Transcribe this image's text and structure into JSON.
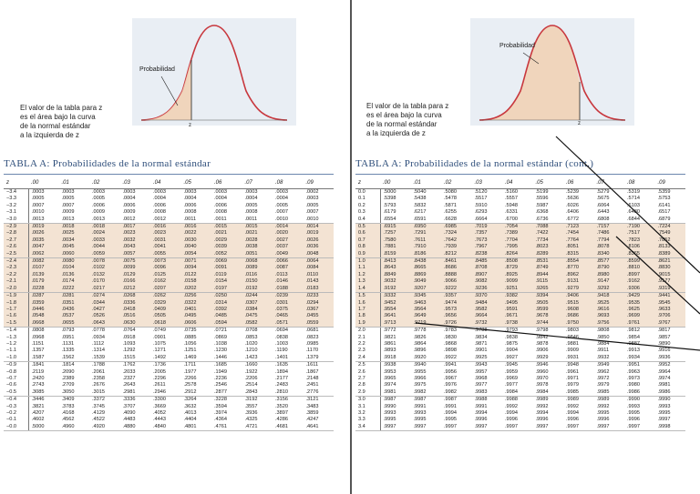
{
  "left": {
    "caption": [
      "El valor de la tabla para z",
      "es el área bajo la curva",
      "de la normal estándar",
      "a la izquierda de z"
    ],
    "prob_label": "Probabilidad",
    "z_label": "z",
    "title": "TABLA A:  Probabilidades de la normal estándar",
    "headers": [
      "z",
      ".00",
      ".01",
      ".02",
      ".03",
      ".04",
      ".05",
      ".06",
      ".07",
      ".08",
      ".09"
    ],
    "rows": [
      [
        "−3.4",
        ".0003",
        ".0003",
        ".0003",
        ".0003",
        ".0003",
        ".0003",
        ".0003",
        ".0003",
        ".0003",
        ".0002"
      ],
      [
        "−3.3",
        ".0005",
        ".0005",
        ".0005",
        ".0004",
        ".0004",
        ".0004",
        ".0004",
        ".0004",
        ".0004",
        ".0003"
      ],
      [
        "−3.2",
        ".0007",
        ".0007",
        ".0006",
        ".0006",
        ".0006",
        ".0006",
        ".0006",
        ".0005",
        ".0005",
        ".0005"
      ],
      [
        "−3.1",
        ".0010",
        ".0009",
        ".0009",
        ".0009",
        ".0008",
        ".0008",
        ".0008",
        ".0008",
        ".0007",
        ".0007"
      ],
      [
        "−3.0",
        ".0013",
        ".0013",
        ".0013",
        ".0012",
        ".0012",
        ".0011",
        ".0011",
        ".0011",
        ".0010",
        ".0010"
      ],
      [
        "−2.9",
        ".0019",
        ".0018",
        ".0018",
        ".0017",
        ".0016",
        ".0016",
        ".0015",
        ".0015",
        ".0014",
        ".0014"
      ],
      [
        "−2.8",
        ".0026",
        ".0025",
        ".0024",
        ".0023",
        ".0023",
        ".0022",
        ".0021",
        ".0021",
        ".0020",
        ".0019"
      ],
      [
        "−2.7",
        ".0035",
        ".0034",
        ".0033",
        ".0032",
        ".0031",
        ".0030",
        ".0029",
        ".0028",
        ".0027",
        ".0026"
      ],
      [
        "−2.6",
        ".0047",
        ".0045",
        ".0044",
        ".0043",
        ".0041",
        ".0040",
        ".0039",
        ".0038",
        ".0037",
        ".0036"
      ],
      [
        "−2.5",
        ".0062",
        ".0060",
        ".0059",
        ".0057",
        ".0055",
        ".0054",
        ".0052",
        ".0051",
        ".0049",
        ".0048"
      ],
      [
        "−2.4",
        ".0082",
        ".0080",
        ".0078",
        ".0075",
        ".0073",
        ".0071",
        ".0069",
        ".0068",
        ".0066",
        ".0064"
      ],
      [
        "−2.3",
        ".0107",
        ".0104",
        ".0102",
        ".0099",
        ".0096",
        ".0094",
        ".0091",
        ".0089",
        ".0087",
        ".0084"
      ],
      [
        "−2.2",
        ".0139",
        ".0136",
        ".0132",
        ".0129",
        ".0125",
        ".0122",
        ".0119",
        ".0116",
        ".0113",
        ".0110"
      ],
      [
        "−2.1",
        ".0179",
        ".0174",
        ".0170",
        ".0166",
        ".0162",
        ".0158",
        ".0154",
        ".0150",
        ".0146",
        ".0143"
      ],
      [
        "−2.0",
        ".0228",
        ".0222",
        ".0217",
        ".0212",
        ".0207",
        ".0202",
        ".0197",
        ".0192",
        ".0188",
        ".0183"
      ],
      [
        "−1.9",
        ".0287",
        ".0281",
        ".0274",
        ".0268",
        ".0262",
        ".0256",
        ".0250",
        ".0244",
        ".0239",
        ".0233"
      ],
      [
        "−1.8",
        ".0359",
        ".0351",
        ".0344",
        ".0336",
        ".0329",
        ".0322",
        ".0314",
        ".0307",
        ".0301",
        ".0294"
      ],
      [
        "−1.7",
        ".0446",
        ".0436",
        ".0427",
        ".0418",
        ".0409",
        ".0401",
        ".0392",
        ".0384",
        ".0375",
        ".0367"
      ],
      [
        "−1.6",
        ".0548",
        ".0537",
        ".0526",
        ".0516",
        ".0505",
        ".0495",
        ".0485",
        ".0475",
        ".0465",
        ".0455"
      ],
      [
        "−1.5",
        ".0668",
        ".0655",
        ".0643",
        ".0630",
        ".0618",
        ".0606",
        ".0594",
        ".0582",
        ".0571",
        ".0559"
      ],
      [
        "−1.4",
        ".0808",
        ".0793",
        ".0778",
        ".0764",
        ".0749",
        ".0735",
        ".0721",
        ".0708",
        ".0694",
        ".0681"
      ],
      [
        "−1.3",
        ".0968",
        ".0951",
        ".0934",
        ".0918",
        ".0901",
        ".0885",
        ".0869",
        ".0853",
        ".0838",
        ".0823"
      ],
      [
        "−1.2",
        ".1151",
        ".1131",
        ".1112",
        ".1093",
        ".1075",
        ".1056",
        ".1038",
        ".1020",
        ".1003",
        ".0985"
      ],
      [
        "−1.1",
        ".1357",
        ".1335",
        ".1314",
        ".1292",
        ".1271",
        ".1251",
        ".1230",
        ".1210",
        ".1190",
        ".1170"
      ],
      [
        "−1.0",
        ".1587",
        ".1562",
        ".1539",
        ".1515",
        ".1492",
        ".1469",
        ".1446",
        ".1423",
        ".1401",
        ".1379"
      ],
      [
        "−0.9",
        ".1841",
        ".1814",
        ".1788",
        ".1762",
        ".1736",
        ".1711",
        ".1685",
        ".1660",
        ".1635",
        ".1611"
      ],
      [
        "−0.8",
        ".2119",
        ".2090",
        ".2061",
        ".2033",
        ".2005",
        ".1977",
        ".1949",
        ".1922",
        ".1894",
        ".1867"
      ],
      [
        "−0.7",
        ".2420",
        ".2389",
        ".2358",
        ".2327",
        ".2296",
        ".2266",
        ".2236",
        ".2206",
        ".2177",
        ".2148"
      ],
      [
        "−0.6",
        ".2743",
        ".2709",
        ".2676",
        ".2643",
        ".2611",
        ".2578",
        ".2546",
        ".2514",
        ".2483",
        ".2451"
      ],
      [
        "−0.5",
        ".3085",
        ".3050",
        ".3015",
        ".2981",
        ".2946",
        ".2912",
        ".2877",
        ".2843",
        ".2810",
        ".2776"
      ],
      [
        "−0.4",
        ".3446",
        ".3409",
        ".3372",
        ".3336",
        ".3300",
        ".3264",
        ".3228",
        ".3192",
        ".3156",
        ".3121"
      ],
      [
        "−0.3",
        ".3821",
        ".3783",
        ".3745",
        ".3707",
        ".3669",
        ".3632",
        ".3594",
        ".3557",
        ".3520",
        ".3483"
      ],
      [
        "−0.2",
        ".4207",
        ".4168",
        ".4129",
        ".4090",
        ".4052",
        ".4013",
        ".3974",
        ".3936",
        ".3897",
        ".3859"
      ],
      [
        "−0.1",
        ".4602",
        ".4562",
        ".4522",
        ".4483",
        ".4443",
        ".4404",
        ".4364",
        ".4325",
        ".4286",
        ".4247"
      ],
      [
        "−0.0",
        ".5000",
        ".4960",
        ".4920",
        ".4880",
        ".4840",
        ".4801",
        ".4761",
        ".4721",
        ".4681",
        ".4641"
      ]
    ]
  },
  "right": {
    "caption": [
      "El valor de la tabla para z",
      "es el área bajo la curva",
      "de la normal estándar",
      "a  la  izquierda  de  z"
    ],
    "prob_label": "Probabilidad",
    "z_label": "z",
    "title": "TABLA A: Probabilidades  de  la  normal  estándar  (cont.)",
    "headers": [
      "z",
      ".00",
      ".01",
      ".02",
      ".03",
      ".04",
      ".05",
      ".06",
      ".07",
      ".08",
      ".09"
    ],
    "rows": [
      [
        "0.0",
        ".5000",
        ".5040",
        ".5080",
        ".5120",
        ".5160",
        ".5199",
        ".5239",
        ".5279",
        ".5319",
        ".5359"
      ],
      [
        "0.1",
        ".5398",
        ".5438",
        ".5478",
        ".5517",
        ".5557",
        ".5596",
        ".5636",
        ".5675",
        ".5714",
        ".5753"
      ],
      [
        "0.2",
        ".5793",
        ".5832",
        ".5871",
        ".5910",
        ".5948",
        ".5987",
        ".6026",
        ".6064",
        ".6103",
        ".6141"
      ],
      [
        "0.3",
        ".6179",
        ".6217",
        ".6255",
        ".6293",
        ".6331",
        ".6368",
        ".6406",
        ".6443",
        ".6480",
        ".6517"
      ],
      [
        "0.4",
        ".6554",
        ".6591",
        ".6628",
        ".6664",
        ".6700",
        ".6736",
        ".6772",
        ".6808",
        ".6844",
        ".6879"
      ],
      [
        "0.5",
        ".6915",
        ".6950",
        ".6985",
        ".7019",
        ".7054",
        ".7088",
        ".7123",
        ".7157",
        ".7190",
        ".7224"
      ],
      [
        "0.6",
        ".7257",
        ".7291",
        ".7324",
        ".7357",
        ".7389",
        ".7422",
        ".7454",
        ".7486",
        ".7517",
        ".7549"
      ],
      [
        "0.7",
        ".7580",
        ".7611",
        ".7642",
        ".7673",
        ".7704",
        ".7734",
        ".7764",
        ".7794",
        ".7823",
        ".7852"
      ],
      [
        "0.8",
        ".7881",
        ".7910",
        ".7939",
        ".7967",
        ".7995",
        ".8023",
        ".8051",
        ".8078",
        ".8106",
        ".8133"
      ],
      [
        "0.9",
        ".8159",
        ".8186",
        ".8212",
        ".8238",
        ".8264",
        ".8289",
        ".8315",
        ".8340",
        ".8365",
        ".8389"
      ],
      [
        "1.0",
        ".8413",
        ".8438",
        ".8461",
        ".8485",
        ".8508",
        ".8531",
        ".8554",
        ".8577",
        ".8599",
        ".8621"
      ],
      [
        "1.1",
        ".8643",
        ".8665",
        ".8686",
        ".8708",
        ".8729",
        ".8749",
        ".8770",
        ".8790",
        ".8810",
        ".8830"
      ],
      [
        "1.2",
        ".8849",
        ".8869",
        ".8888",
        ".8907",
        ".8925",
        ".8944",
        ".8962",
        ".8980",
        ".8997",
        ".9015"
      ],
      [
        "1.3",
        ".9032",
        ".9049",
        ".9066",
        ".9082",
        ".9099",
        ".9115",
        ".9131",
        ".9147",
        ".9162",
        ".9177"
      ],
      [
        "1.4",
        ".9192",
        ".9207",
        ".9222",
        ".9236",
        ".9251",
        ".9265",
        ".9279",
        ".9292",
        ".9306",
        ".9319"
      ],
      [
        "1.5",
        ".9332",
        ".9345",
        ".9357",
        ".9370",
        ".9382",
        ".9394",
        ".9406",
        ".9418",
        ".9429",
        ".9441"
      ],
      [
        "1.6",
        ".9452",
        ".9463",
        ".9474",
        ".9484",
        ".9495",
        ".9505",
        ".9515",
        ".9525",
        ".9535",
        ".9545"
      ],
      [
        "1.7",
        ".9554",
        ".9564",
        ".9573",
        ".9582",
        ".9591",
        ".9599",
        ".9608",
        ".9616",
        ".9625",
        ".9633"
      ],
      [
        "1.8",
        ".9641",
        ".9649",
        ".9656",
        ".9664",
        ".9671",
        ".9678",
        ".9686",
        ".9693",
        ".9699",
        ".9706"
      ],
      [
        "1.9",
        ".9713",
        ".9719",
        ".9726",
        ".9732",
        ".9738",
        ".9744",
        ".9750",
        ".9756",
        ".9761",
        ".9767"
      ],
      [
        "2.0",
        ".9772",
        ".9778",
        ".9783",
        ".9788",
        ".9793",
        ".9798",
        ".9803",
        ".9808",
        ".9812",
        ".9817"
      ],
      [
        "2.1",
        ".9821",
        ".9826",
        ".9830",
        ".9834",
        ".9838",
        ".9842",
        ".9846",
        ".9850",
        ".9854",
        ".9857"
      ],
      [
        "2.2",
        ".9861",
        ".9864",
        ".9868",
        ".9871",
        ".9875",
        ".9878",
        ".9881",
        ".9884",
        ".9887",
        ".9890"
      ],
      [
        "2.3",
        ".9893",
        ".9896",
        ".9898",
        ".9901",
        ".9904",
        ".9906",
        ".9909",
        ".9911",
        ".9913",
        ".9916"
      ],
      [
        "2.4",
        ".9918",
        ".9920",
        ".9922",
        ".9925",
        ".9927",
        ".9929",
        ".9931",
        ".9932",
        ".9934",
        ".9936"
      ],
      [
        "2.5",
        ".9938",
        ".9940",
        ".9941",
        ".9943",
        ".9945",
        ".9946",
        ".9948",
        ".9949",
        ".9951",
        ".9952"
      ],
      [
        "2.6",
        ".9953",
        ".9955",
        ".9956",
        ".9957",
        ".9959",
        ".9960",
        ".9961",
        ".9962",
        ".9963",
        ".9964"
      ],
      [
        "2.7",
        ".9965",
        ".9966",
        ".9967",
        ".9968",
        ".9969",
        ".9970",
        ".9971",
        ".9972",
        ".9973",
        ".9974"
      ],
      [
        "2.8",
        ".9974",
        ".9975",
        ".9976",
        ".9977",
        ".9977",
        ".9978",
        ".9979",
        ".9979",
        ".9980",
        ".9981"
      ],
      [
        "2.9",
        ".9981",
        ".9982",
        ".9982",
        ".9983",
        ".9984",
        ".9984",
        ".9985",
        ".9985",
        ".9986",
        ".9986"
      ],
      [
        "3.0",
        ".9987",
        ".9987",
        ".9987",
        ".9988",
        ".9988",
        ".9989",
        ".9989",
        ".9989",
        ".9990",
        ".9990"
      ],
      [
        "3.1",
        ".9990",
        ".9991",
        ".9991",
        ".9991",
        ".9992",
        ".9992",
        ".9992",
        ".9992",
        ".9993",
        ".9993"
      ],
      [
        "3.2",
        ".9993",
        ".9993",
        ".9994",
        ".9994",
        ".9994",
        ".9994",
        ".9994",
        ".9995",
        ".9995",
        ".9995"
      ],
      [
        "3.3",
        ".9995",
        ".9995",
        ".9995",
        ".9996",
        ".9996",
        ".9996",
        ".9996",
        ".9996",
        ".9996",
        ".9997"
      ],
      [
        "3.4",
        ".9997",
        ".9997",
        ".9997",
        ".9997",
        ".9997",
        ".9997",
        ".9997",
        ".9997",
        ".9997",
        ".9998"
      ]
    ]
  }
}
